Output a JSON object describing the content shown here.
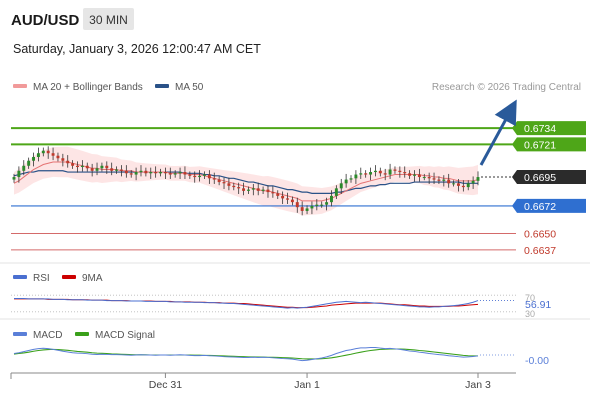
{
  "header": {
    "symbol": "AUD/USD",
    "timeframe": "30 MIN",
    "datetime": "Saturday, January 3, 2026 12:00:47 AM CET"
  },
  "legend": {
    "ma20_label": "MA 20 + Bollinger Bands",
    "ma50_label": "MA 50",
    "copyright": "Research © 2026 Trading Central"
  },
  "colors": {
    "candle_up": "#2b8a2b",
    "candle_down": "#c0392b",
    "candle_wick": "#333333",
    "ma20": "#e57373",
    "ma50": "#2a5288",
    "bollinger_fill": "#fde0e0",
    "level_green": "#4ea618",
    "level_blue": "#2f6fd0",
    "level_red": "#d46a6a",
    "current_price": "#2b2b2b",
    "arrow": "#2a5a9a",
    "rsi": "#4a6fd0",
    "rsi_ma": "#cc0000",
    "macd": "#5a7fd8",
    "macd_signal": "#3aa01a"
  },
  "chart_data": [
    {
      "type": "candlestick",
      "title": "AUD/USD",
      "subtitle": "30 MIN",
      "ylim": [
        0.66305,
        0.6758
      ],
      "levels": [
        {
          "value": 0.6734,
          "label": "0.6734",
          "kind": "resistance"
        },
        {
          "value": 0.6721,
          "label": "0.6721",
          "kind": "resistance"
        },
        {
          "value": 0.6695,
          "label": "0.6695",
          "kind": "current"
        },
        {
          "value": 0.6672,
          "label": "0.6672",
          "kind": "pivot"
        },
        {
          "value": 0.665,
          "label": "0.6650",
          "kind": "support"
        },
        {
          "value": 0.6637,
          "label": "0.6637",
          "kind": "support"
        }
      ],
      "x_ticks": [
        {
          "index": 31,
          "label": "Dec 31"
        },
        {
          "index": 60,
          "label": "Jan 1"
        },
        {
          "index": 95,
          "label": "Jan 3"
        }
      ],
      "close": [
        0.6695,
        0.67,
        0.6704,
        0.6708,
        0.6711,
        0.6714,
        0.6716,
        0.6714,
        0.6712,
        0.671,
        0.6708,
        0.6706,
        0.6704,
        0.6703,
        0.6704,
        0.6702,
        0.67,
        0.6702,
        0.6704,
        0.6702,
        0.67,
        0.6701,
        0.67,
        0.6698,
        0.6697,
        0.6699,
        0.67,
        0.6698,
        0.6699,
        0.6698,
        0.6699,
        0.6698,
        0.6697,
        0.6698,
        0.6699,
        0.6697,
        0.6696,
        0.6695,
        0.6696,
        0.6697,
        0.6694,
        0.6693,
        0.6691,
        0.669,
        0.6688,
        0.6687,
        0.6686,
        0.6684,
        0.6685,
        0.6686,
        0.6684,
        0.6685,
        0.6683,
        0.6682,
        0.668,
        0.6678,
        0.6677,
        0.6675,
        0.6671,
        0.6668,
        0.667,
        0.6672,
        0.6673,
        0.6673,
        0.6675,
        0.668,
        0.6686,
        0.669,
        0.6693,
        0.6694,
        0.6697,
        0.6698,
        0.6697,
        0.6699,
        0.67,
        0.6698,
        0.6697,
        0.6701,
        0.67,
        0.6699,
        0.6698,
        0.6696,
        0.6697,
        0.6695,
        0.6695,
        0.6694,
        0.6693,
        0.6692,
        0.6693,
        0.669,
        0.669,
        0.6688,
        0.6687,
        0.669,
        0.6692,
        0.6695
      ],
      "ma20": [
        0.669,
        0.6692,
        0.6695,
        0.6698,
        0.6701,
        0.6703,
        0.6705,
        0.6706,
        0.6707,
        0.6707,
        0.6707,
        0.6707,
        0.6706,
        0.6705,
        0.6704,
        0.6703,
        0.6702,
        0.6702,
        0.6701,
        0.6701,
        0.6701,
        0.6701,
        0.67,
        0.67,
        0.67,
        0.6699,
        0.6699,
        0.6699,
        0.6699,
        0.6699,
        0.6699,
        0.6699,
        0.6698,
        0.6698,
        0.6698,
        0.6698,
        0.6697,
        0.6697,
        0.6697,
        0.6696,
        0.6695,
        0.6694,
        0.6693,
        0.6692,
        0.6691,
        0.669,
        0.6689,
        0.6688,
        0.6687,
        0.6686,
        0.6685,
        0.6684,
        0.6684,
        0.6683,
        0.6682,
        0.6681,
        0.668,
        0.6679,
        0.6678,
        0.6676,
        0.6676,
        0.6676,
        0.6676,
        0.6676,
        0.6677,
        0.6678,
        0.668,
        0.6682,
        0.6684,
        0.6686,
        0.6688,
        0.669,
        0.6691,
        0.6692,
        0.6693,
        0.6694,
        0.6695,
        0.6696,
        0.6697,
        0.6697,
        0.6697,
        0.6697,
        0.6697,
        0.6697,
        0.6696,
        0.6696,
        0.6695,
        0.6695,
        0.6694,
        0.6694,
        0.6693,
        0.6692,
        0.6692,
        0.6692,
        0.6692,
        0.6693
      ],
      "ma50": [
        0.6696,
        0.6697,
        0.6698,
        0.6699,
        0.6699,
        0.67,
        0.67,
        0.67,
        0.67,
        0.67,
        0.67,
        0.6699,
        0.6699,
        0.6699,
        0.6699,
        0.6699,
        0.6699,
        0.6699,
        0.6699,
        0.6699,
        0.6699,
        0.6699,
        0.6699,
        0.6699,
        0.6699,
        0.6699,
        0.6699,
        0.6699,
        0.6699,
        0.6699,
        0.6699,
        0.6699,
        0.6699,
        0.6699,
        0.6699,
        0.6698,
        0.6698,
        0.6698,
        0.6698,
        0.6697,
        0.6697,
        0.6696,
        0.6696,
        0.6695,
        0.6694,
        0.6694,
        0.6693,
        0.6692,
        0.6691,
        0.6691,
        0.669,
        0.6689,
        0.6688,
        0.6688,
        0.6687,
        0.6686,
        0.6685,
        0.6685,
        0.6684,
        0.6683,
        0.6683,
        0.6682,
        0.6682,
        0.6682,
        0.6682,
        0.6682,
        0.6683,
        0.6683,
        0.6684,
        0.6685,
        0.6686,
        0.6686,
        0.6687,
        0.6688,
        0.6688,
        0.6689,
        0.6689,
        0.669,
        0.669,
        0.669,
        0.669,
        0.669,
        0.6691,
        0.6691,
        0.6691,
        0.6691,
        0.6691,
        0.6691,
        0.6691,
        0.6691,
        0.6691,
        0.6691,
        0.669,
        0.669,
        0.669,
        0.669
      ],
      "bollinger_width": 0.0009
    },
    {
      "type": "line",
      "title": "RSI",
      "ylim": [
        20,
        80
      ],
      "levels": [
        70,
        30
      ],
      "last_value_label": "56.91",
      "level_labels": [
        "70",
        "30"
      ],
      "series": [
        {
          "name": "RSI",
          "values": [
            62,
            62,
            62,
            61,
            61,
            61,
            61,
            61,
            60,
            60,
            60,
            59,
            59,
            59,
            59,
            58,
            58,
            58,
            58,
            57,
            57,
            57,
            57,
            56,
            56,
            56,
            56,
            55,
            55,
            55,
            55,
            55,
            54,
            54,
            54,
            53,
            53,
            53,
            53,
            52,
            52,
            52,
            51,
            51,
            50,
            50,
            49,
            48,
            47,
            46,
            45,
            44,
            43,
            42,
            41,
            40,
            39,
            40,
            39,
            40,
            41,
            43,
            45,
            47,
            49,
            51,
            53,
            54,
            55,
            54,
            53,
            52,
            53,
            52,
            51,
            50,
            49,
            48,
            47,
            46,
            45,
            44,
            43,
            42,
            42,
            41,
            42,
            42,
            43,
            44,
            45,
            46,
            48,
            50,
            53,
            57
          ]
        },
        {
          "name": "9MA",
          "values": [
            61,
            61,
            61,
            61,
            61,
            61,
            61,
            60,
            60,
            60,
            60,
            60,
            59,
            59,
            59,
            59,
            58,
            58,
            58,
            58,
            57,
            57,
            57,
            57,
            56,
            56,
            56,
            56,
            56,
            55,
            55,
            55,
            55,
            54,
            54,
            54,
            54,
            53,
            53,
            53,
            52,
            52,
            52,
            51,
            51,
            51,
            50,
            50,
            49,
            48,
            47,
            46,
            45,
            44,
            43,
            42,
            41,
            41,
            40,
            40,
            40,
            41,
            42,
            43,
            44,
            46,
            47,
            48,
            49,
            50,
            51,
            51,
            51,
            51,
            51,
            51,
            50,
            49,
            48,
            47,
            47,
            46,
            45,
            44,
            44,
            43,
            43,
            43,
            43,
            43,
            44,
            44,
            45,
            46,
            47,
            48
          ]
        }
      ]
    },
    {
      "type": "line",
      "title": "MACD",
      "ylim": [
        -0.0008,
        0.0008
      ],
      "last_value_label": "-0.00",
      "series": [
        {
          "name": "MACD",
          "values": [
            8e-05,
            0.00012,
            0.00018,
            0.00024,
            0.0003,
            0.00034,
            0.00036,
            0.00034,
            0.0003,
            0.00025,
            0.0002,
            0.00016,
            0.00012,
            0.0001,
            9e-05,
            7e-05,
            4e-05,
            3e-05,
            4e-05,
            3e-05,
            2e-05,
            2e-05,
            1e-05,
            0.0,
            -1e-05,
            0.0,
            1e-05,
            0.0,
            0.0,
            -1e-05,
            0.0,
            0.0,
            -1e-05,
            0.0,
            1e-05,
            0.0,
            -2e-05,
            -3e-05,
            -3e-05,
            -2e-05,
            -4e-05,
            -5e-05,
            -7e-05,
            -9e-05,
            -0.0001,
            -0.00011,
            -0.00012,
            -0.00013,
            -0.00013,
            -0.00012,
            -0.00013,
            -0.00012,
            -0.00013,
            -0.00015,
            -0.00017,
            -0.00019,
            -0.0002,
            -0.00022,
            -0.00026,
            -0.0003,
            -0.00028,
            -0.00024,
            -0.0002,
            -0.00016,
            -0.0001,
            -2e-05,
            8e-05,
            0.00016,
            0.00024,
            0.00028,
            0.00034,
            0.00038,
            0.00038,
            0.0004,
            0.0004,
            0.00037,
            0.00034,
            0.00035,
            0.00033,
            0.0003,
            0.00026,
            0.00021,
            0.00019,
            0.00015,
            0.00012,
            8e-05,
            5e-05,
            2e-05,
            0.0,
            -4e-05,
            -6e-05,
            -9e-05,
            -0.00011,
            -0.0001,
            -8e-05,
            -5e-05
          ]
        },
        {
          "name": "MACD Signal",
          "values": [
            5e-05,
            8e-05,
            0.00011,
            0.00015,
            0.0002,
            0.00024,
            0.00027,
            0.00029,
            0.0003,
            0.00029,
            0.00027,
            0.00025,
            0.00022,
            0.00019,
            0.00017,
            0.00015,
            0.00012,
            0.0001,
            9e-05,
            8e-05,
            6e-05,
            5e-05,
            4e-05,
            3e-05,
            2e-05,
            1e-05,
            1e-05,
            1e-05,
            0.0,
            0.0,
            0.0,
            0.0,
            0.0,
            0.0,
            0.0,
            0.0,
            0.0,
            -1e-05,
            -1e-05,
            -2e-05,
            -2e-05,
            -3e-05,
            -4e-05,
            -5e-05,
            -6e-05,
            -7e-05,
            -8e-05,
            -9e-05,
            -0.0001,
            -0.0001,
            -0.00011,
            -0.00011,
            -0.00012,
            -0.00012,
            -0.00013,
            -0.00014,
            -0.00015,
            -0.00016,
            -0.00018,
            -0.0002,
            -0.00021,
            -0.00021,
            -0.00021,
            -0.0002,
            -0.00018,
            -0.00015,
            -0.00011,
            -6e-05,
            -1e-05,
            4e-05,
            0.0001,
            0.00015,
            0.0002,
            0.00024,
            0.00027,
            0.0003,
            0.00031,
            0.00032,
            0.00032,
            0.00032,
            0.00031,
            0.00029,
            0.00027,
            0.00024,
            0.00022,
            0.00019,
            0.00016,
            0.00013,
            0.0001,
            7e-05,
            4e-05,
            1e-05,
            -2e-05,
            -4e-05,
            -5e-05,
            -5e-05
          ]
        }
      ]
    }
  ]
}
